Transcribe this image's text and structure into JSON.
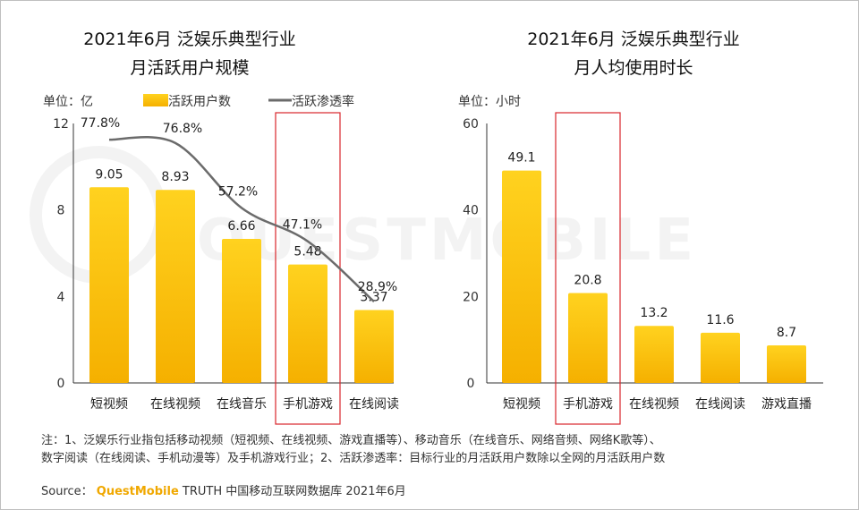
{
  "watermark": "QUESTMOBILE",
  "colors": {
    "bar_top": "#ffd21f",
    "bar_bottom": "#f5b000",
    "line": "#6b6b6b",
    "highlight_box": "#d9262b"
  },
  "left_chart": {
    "title_line1": "2021年6月 泛娱乐典型行业",
    "title_line2": "月活跃用户规模",
    "unit": "单位：亿",
    "legend": {
      "bar": "活跃用户数",
      "line": "活跃渗透率"
    },
    "highlighted_category": "手机游戏"
  },
  "right_chart": {
    "title_line1": "2021年6月 泛娱乐典型行业",
    "title_line2": "月人均使用时长",
    "unit": "单位：小时",
    "highlighted_category": "手机游戏"
  },
  "chart_data": [
    {
      "type": "bar",
      "title": "2021年6月 泛娱乐典型行业 月活跃用户规模",
      "categories": [
        "短视频",
        "在线视频",
        "在线音乐",
        "手机游戏",
        "在线阅读"
      ],
      "series": [
        {
          "name": "活跃用户数",
          "type": "bar",
          "values": [
            9.05,
            8.93,
            6.66,
            5.48,
            3.37
          ],
          "labels": [
            "9.05",
            "8.93",
            "6.66",
            "5.48",
            "3.37"
          ]
        },
        {
          "name": "活跃渗透率",
          "type": "line",
          "values": [
            77.8,
            76.8,
            57.2,
            47.1,
            28.9
          ],
          "labels": [
            "77.8%",
            "76.8%",
            "57.2%",
            "47.1%",
            "28.9%"
          ]
        }
      ],
      "yticks": [
        "0",
        "4",
        "8",
        "12"
      ],
      "ylim": [
        0,
        12
      ],
      "ylabel": "单位：亿"
    },
    {
      "type": "bar",
      "title": "2021年6月 泛娱乐典型行业 月人均使用时长",
      "categories": [
        "短视频",
        "手机游戏",
        "在线视频",
        "在线阅读",
        "游戏直播"
      ],
      "series": [
        {
          "name": "",
          "type": "bar",
          "values": [
            49.1,
            20.8,
            13.2,
            11.6,
            8.7
          ],
          "labels": [
            "49.1",
            "20.8",
            "13.2",
            "11.6",
            "8.7"
          ]
        }
      ],
      "yticks": [
        "0",
        "20",
        "40",
        "60"
      ],
      "ylim": [
        0,
        60
      ],
      "ylabel": "单位：小时"
    }
  ],
  "footnote": {
    "line1": "注：1、泛娱乐行业指包括移动视频（短视频、在线视频、游戏直播等）、移动音乐（在线音乐、网络音频、网络K歌等）、",
    "line2": "数字阅读（在线阅读、手机动漫等）及手机游戏行业；2、活跃渗透率：目标行业的月活跃用户数除以全网的月活跃用户数"
  },
  "source": {
    "prefix": "Source：",
    "brand": "QuestMobile",
    "rest": "TRUTH 中国移动互联网数据库 2021年6月"
  }
}
